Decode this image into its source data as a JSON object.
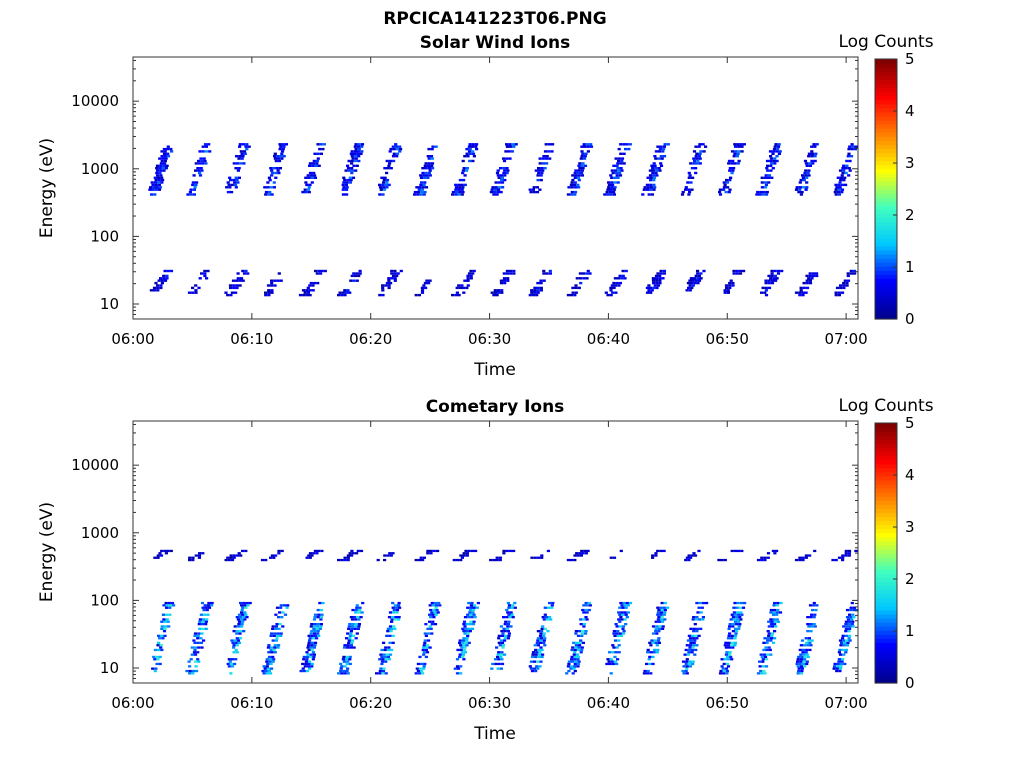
{
  "figure_title": "RPCICA141223T06.PNG",
  "colors": {
    "colormap": [
      "#00008f",
      "#0000ff",
      "#00c8ff",
      "#40ffbf",
      "#ffff00",
      "#ff8000",
      "#ff0000",
      "#800000"
    ]
  },
  "chart_data": [
    {
      "type": "heatmap",
      "title": "Solar Wind Ions",
      "xlabel": "Time",
      "ylabel": "Energy (eV)",
      "x_ticks": [
        "06:00",
        "06:10",
        "06:20",
        "06:30",
        "06:40",
        "06:50",
        "07:00"
      ],
      "x_range_min": [
        0,
        61
      ],
      "y_scale": "log",
      "y_range_eV": [
        6,
        45000
      ],
      "y_ticks": [
        "10",
        "100",
        "1000",
        "10000"
      ],
      "colorbar": {
        "label": "Log Counts",
        "range": [
          0,
          5
        ],
        "ticks": [
          "0",
          "1",
          "2",
          "3",
          "4",
          "5"
        ]
      },
      "sweeps_min": [
        1.7,
        4.9,
        8.1,
        11.3,
        14.5,
        17.7,
        20.9,
        24.1,
        27.3,
        30.5,
        33.7,
        36.9,
        40.1,
        43.3,
        46.5,
        49.7,
        52.9,
        56.1,
        59.3
      ],
      "bands": [
        {
          "name": "upper",
          "e_low": 400,
          "e_high": 2400,
          "level": 1.0
        },
        {
          "name": "lower",
          "e_low": 13,
          "e_high": 32,
          "level": 0.7
        }
      ]
    },
    {
      "type": "heatmap",
      "title": "Cometary Ions",
      "xlabel": "Time",
      "ylabel": "Energy (eV)",
      "x_ticks": [
        "06:00",
        "06:10",
        "06:20",
        "06:30",
        "06:40",
        "06:50",
        "07:00"
      ],
      "x_range_min": [
        0,
        61
      ],
      "y_scale": "log",
      "y_range_eV": [
        6,
        45000
      ],
      "y_ticks": [
        "10",
        "100",
        "1000",
        "10000"
      ],
      "colorbar": {
        "label": "Log Counts",
        "range": [
          0,
          5
        ],
        "ticks": [
          "0",
          "1",
          "2",
          "3",
          "4",
          "5"
        ]
      },
      "sweeps_min": [
        1.7,
        4.9,
        8.1,
        11.3,
        14.5,
        17.7,
        20.9,
        24.1,
        27.3,
        30.5,
        33.7,
        36.9,
        40.1,
        43.3,
        46.5,
        49.7,
        52.9,
        56.1,
        59.3
      ],
      "bands": [
        {
          "name": "upper",
          "e_low": 380,
          "e_high": 560,
          "level": 0.6
        },
        {
          "name": "lower",
          "e_low": 8,
          "e_high": 95,
          "level": 1.6
        }
      ]
    }
  ]
}
